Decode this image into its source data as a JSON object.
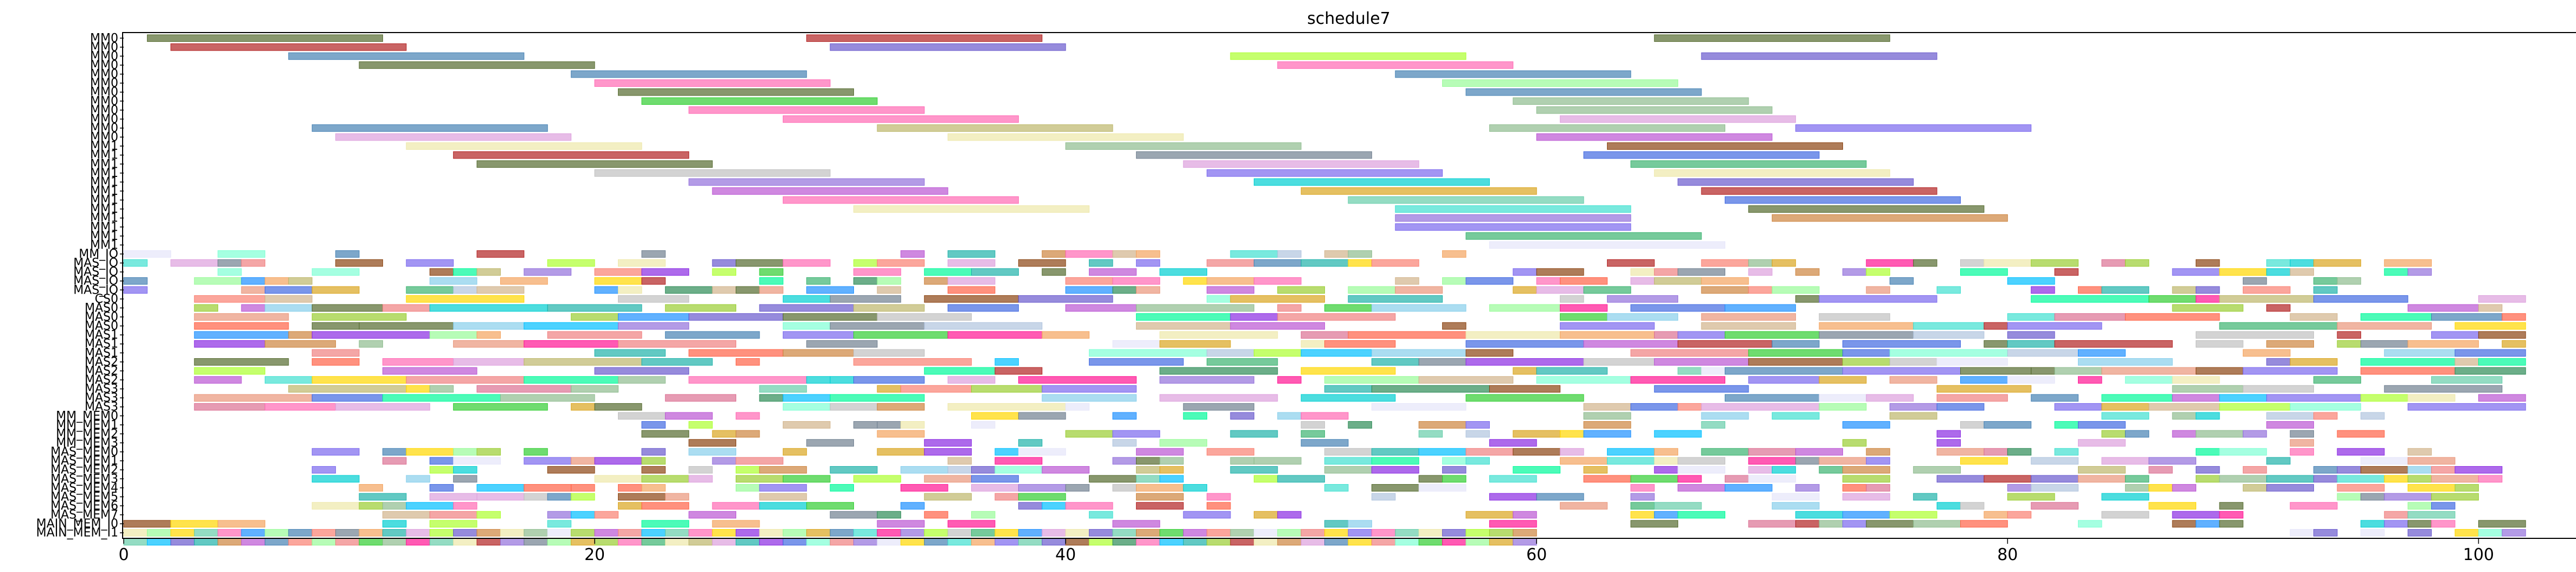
{
  "chart_data": {
    "type": "gantt",
    "title": "schedule7",
    "xlabel": "",
    "ylabel": "",
    "xlim": [
      0,
      104
    ],
    "xticks": [
      0,
      20,
      40,
      60,
      80,
      100
    ],
    "grid": false,
    "legend": "none",
    "rows": [
      "MM0",
      "MM0",
      "MM0",
      "MM0",
      "MM0",
      "MM0",
      "MM0",
      "MM0",
      "MM0",
      "MM0",
      "MM0",
      "MM0",
      "MM1",
      "MM1",
      "MM1",
      "MM1",
      "MM1",
      "MM1",
      "MM1",
      "MM1",
      "MM1",
      "MM1",
      "MM1",
      "MM1",
      "MM_IO",
      "MAS_IO",
      "MAS_IO",
      "MAS_IO",
      "MAS_IO",
      "CS0",
      "MAS0",
      "MAS0",
      "MAS0",
      "MAS1",
      "MAS1",
      "MAS1",
      "MAS2",
      "MAS2",
      "MAS2",
      "MAS3",
      "MAS3",
      "MAS3",
      "MM_MEM0",
      "MM_MEM1",
      "MM_MEM2",
      "MM_MEM3",
      "MAS_MEM0",
      "MAS_MEM1",
      "MAS_MEM2",
      "MAS_MEM3",
      "MAS_MEM4",
      "MAS_MEM5",
      "MAS_MEM6",
      "MAS_MEM7",
      "MAIN_MEM_I0",
      "MAIN_MEM_I1"
    ],
    "palette": [
      "#556b2f",
      "#b22222",
      "#6a5acd",
      "#4682b4",
      "#8fbc8f",
      "#20b2aa",
      "#9370db",
      "#32cd32",
      "#ff69b4",
      "#daa520",
      "#87ceeb",
      "#dda0dd",
      "#f08080",
      "#3cb371",
      "#7b68ee",
      "#00ced1",
      "#bdb76b",
      "#cd853f",
      "#4169e1",
      "#2e8b57",
      "#ba55d3",
      "#98fb98",
      "#f4a460",
      "#c0c0c0",
      "#e6e6fa",
      "#ff1493",
      "#adff2f",
      "#00fa9a",
      "#ffd700",
      "#708090",
      "#8b4513",
      "#ff6347",
      "#1e90ff",
      "#9acd32",
      "#d2b48c",
      "#e9967a",
      "#66cdaa",
      "#b0c4de",
      "#fa8072",
      "#40e0d0",
      "#eee8aa",
      "#db7093",
      "#00bfff",
      "#8a2be2",
      "#7fffd4"
    ],
    "tasks": [
      {
        "row": 0,
        "start": 1,
        "end": 11,
        "c": 0
      },
      {
        "row": 0,
        "start": 29,
        "end": 39,
        "c": 1
      },
      {
        "row": 0,
        "start": 65,
        "end": 75,
        "c": 0
      },
      {
        "row": 1,
        "start": 2,
        "end": 12,
        "c": 1
      },
      {
        "row": 1,
        "start": 30,
        "end": 40,
        "c": 2
      },
      {
        "row": 2,
        "start": 7,
        "end": 17,
        "c": 3
      },
      {
        "row": 2,
        "start": 47,
        "end": 57,
        "c": 26
      },
      {
        "row": 2,
        "start": 67,
        "end": 77,
        "c": 2
      },
      {
        "row": 3,
        "start": 10,
        "end": 20,
        "c": 0
      },
      {
        "row": 3,
        "start": 49,
        "end": 59,
        "c": 8
      },
      {
        "row": 4,
        "start": 19,
        "end": 29,
        "c": 3
      },
      {
        "row": 4,
        "start": 54,
        "end": 64,
        "c": 3
      },
      {
        "row": 5,
        "start": 20,
        "end": 30,
        "c": 8
      },
      {
        "row": 5,
        "start": 56,
        "end": 66,
        "c": 21
      },
      {
        "row": 6,
        "start": 21,
        "end": 31,
        "c": 0
      },
      {
        "row": 6,
        "start": 57,
        "end": 67,
        "c": 3
      },
      {
        "row": 7,
        "start": 22,
        "end": 32,
        "c": 7
      },
      {
        "row": 7,
        "start": 59,
        "end": 69,
        "c": 4
      },
      {
        "row": 8,
        "start": 24,
        "end": 34,
        "c": 8
      },
      {
        "row": 8,
        "start": 60,
        "end": 70,
        "c": 4
      },
      {
        "row": 9,
        "start": 28,
        "end": 38,
        "c": 8
      },
      {
        "row": 9,
        "start": 61,
        "end": 71,
        "c": 11
      },
      {
        "row": 10,
        "start": 8,
        "end": 18,
        "c": 3
      },
      {
        "row": 10,
        "start": 32,
        "end": 42,
        "c": 16
      },
      {
        "row": 10,
        "start": 58,
        "end": 68,
        "c": 4
      },
      {
        "row": 10,
        "start": 71,
        "end": 81,
        "c": 14
      },
      {
        "row": 11,
        "start": 9,
        "end": 19,
        "c": 11
      },
      {
        "row": 11,
        "start": 35,
        "end": 45,
        "c": 40
      },
      {
        "row": 11,
        "start": 60,
        "end": 70,
        "c": 20
      },
      {
        "row": 12,
        "start": 12,
        "end": 22,
        "c": 40
      },
      {
        "row": 12,
        "start": 40,
        "end": 50,
        "c": 4
      },
      {
        "row": 12,
        "start": 63,
        "end": 73,
        "c": 30
      },
      {
        "row": 13,
        "start": 14,
        "end": 24,
        "c": 1
      },
      {
        "row": 13,
        "start": 43,
        "end": 53,
        "c": 29
      },
      {
        "row": 13,
        "start": 62,
        "end": 72,
        "c": 18
      },
      {
        "row": 14,
        "start": 15,
        "end": 25,
        "c": 0
      },
      {
        "row": 14,
        "start": 45,
        "end": 55,
        "c": 11
      },
      {
        "row": 14,
        "start": 64,
        "end": 74,
        "c": 13
      },
      {
        "row": 15,
        "start": 20,
        "end": 30,
        "c": 23
      },
      {
        "row": 15,
        "start": 46,
        "end": 56,
        "c": 14
      },
      {
        "row": 15,
        "start": 65,
        "end": 75,
        "c": 40
      },
      {
        "row": 16,
        "start": 24,
        "end": 34,
        "c": 6
      },
      {
        "row": 16,
        "start": 48,
        "end": 58,
        "c": 15
      },
      {
        "row": 16,
        "start": 66,
        "end": 76,
        "c": 2
      },
      {
        "row": 17,
        "start": 25,
        "end": 35,
        "c": 20
      },
      {
        "row": 17,
        "start": 50,
        "end": 60,
        "c": 9
      },
      {
        "row": 17,
        "start": 67,
        "end": 77,
        "c": 1
      },
      {
        "row": 18,
        "start": 28,
        "end": 38,
        "c": 8
      },
      {
        "row": 18,
        "start": 52,
        "end": 62,
        "c": 36
      },
      {
        "row": 18,
        "start": 68,
        "end": 78,
        "c": 18
      },
      {
        "row": 19,
        "start": 31,
        "end": 41,
        "c": 40
      },
      {
        "row": 19,
        "start": 54,
        "end": 64,
        "c": 39
      },
      {
        "row": 19,
        "start": 69,
        "end": 79,
        "c": 0
      },
      {
        "row": 20,
        "start": 54,
        "end": 64,
        "c": 6
      },
      {
        "row": 20,
        "start": 70,
        "end": 80,
        "c": 17
      },
      {
        "row": 21,
        "start": 54,
        "end": 64,
        "c": 14
      },
      {
        "row": 22,
        "start": 57,
        "end": 67,
        "c": 13
      },
      {
        "row": 23,
        "start": 58,
        "end": 68,
        "c": 24
      },
      {
        "row": 56,
        "start": 0,
        "end": 1,
        "c": 36
      },
      {
        "row": 56,
        "start": 1,
        "end": 2,
        "c": 42
      },
      {
        "row": 56,
        "start": 2,
        "end": 3,
        "c": 2
      },
      {
        "row": 56,
        "start": 3,
        "end": 4,
        "c": 5
      },
      {
        "row": 56,
        "start": 4,
        "end": 5,
        "c": 17
      },
      {
        "row": 56,
        "start": 5,
        "end": 6,
        "c": 20
      },
      {
        "row": 56,
        "start": 6,
        "end": 7,
        "c": 3
      },
      {
        "row": 56,
        "start": 7,
        "end": 8,
        "c": 38
      },
      {
        "row": 56,
        "start": 8,
        "end": 9,
        "c": 21
      },
      {
        "row": 56,
        "start": 9,
        "end": 10,
        "c": 12
      },
      {
        "row": 56,
        "start": 10,
        "end": 11,
        "c": 7
      },
      {
        "row": 56,
        "start": 11,
        "end": 12,
        "c": 4
      },
      {
        "row": 56,
        "start": 12,
        "end": 13,
        "c": 25
      },
      {
        "row": 56,
        "start": 13,
        "end": 14,
        "c": 36
      },
      {
        "row": 56,
        "start": 14,
        "end": 15,
        "c": 40
      },
      {
        "row": 56,
        "start": 15,
        "end": 16,
        "c": 1
      },
      {
        "row": 56,
        "start": 16,
        "end": 17,
        "c": 6
      },
      {
        "row": 56,
        "start": 17,
        "end": 18,
        "c": 29
      },
      {
        "row": 56,
        "start": 18,
        "end": 19,
        "c": 21
      },
      {
        "row": 56,
        "start": 19,
        "end": 20,
        "c": 9
      },
      {
        "row": 56,
        "start": 20,
        "end": 21,
        "c": 33
      },
      {
        "row": 56,
        "start": 21,
        "end": 22,
        "c": 8
      },
      {
        "row": 56,
        "start": 22,
        "end": 23,
        "c": 13
      },
      {
        "row": 56,
        "start": 23,
        "end": 24,
        "c": 40
      },
      {
        "row": 56,
        "start": 24,
        "end": 25,
        "c": 16
      },
      {
        "row": 56,
        "start": 25,
        "end": 26,
        "c": 11
      },
      {
        "row": 56,
        "start": 26,
        "end": 27,
        "c": 5
      },
      {
        "row": 56,
        "start": 27,
        "end": 28,
        "c": 43
      },
      {
        "row": 56,
        "start": 28,
        "end": 29,
        "c": 18
      },
      {
        "row": 56,
        "start": 29,
        "end": 30,
        "c": 44
      },
      {
        "row": 56,
        "start": 30,
        "end": 31,
        "c": 12
      },
      {
        "row": 56,
        "start": 31,
        "end": 32,
        "c": 6
      },
      {
        "row": 56,
        "start": 32,
        "end": 33,
        "c": 24
      },
      {
        "row": 56,
        "start": 33,
        "end": 34,
        "c": 28
      },
      {
        "row": 56,
        "start": 34,
        "end": 35,
        "c": 3
      },
      {
        "row": 56,
        "start": 35,
        "end": 36,
        "c": 39
      },
      {
        "row": 56,
        "start": 36,
        "end": 37,
        "c": 22
      },
      {
        "row": 56,
        "start": 37,
        "end": 38,
        "c": 14
      },
      {
        "row": 56,
        "start": 38,
        "end": 39,
        "c": 36
      },
      {
        "row": 56,
        "start": 39,
        "end": 40,
        "c": 2
      },
      {
        "row": 56,
        "start": 40,
        "end": 41,
        "c": 30
      },
      {
        "row": 56,
        "start": 41,
        "end": 42,
        "c": 26
      },
      {
        "row": 56,
        "start": 42,
        "end": 43,
        "c": 19
      },
      {
        "row": 56,
        "start": 43,
        "end": 44,
        "c": 8
      },
      {
        "row": 56,
        "start": 44,
        "end": 45,
        "c": 42
      },
      {
        "row": 56,
        "start": 45,
        "end": 46,
        "c": 5
      },
      {
        "row": 56,
        "start": 46,
        "end": 47,
        "c": 33
      },
      {
        "row": 56,
        "start": 47,
        "end": 48,
        "c": 1
      },
      {
        "row": 56,
        "start": 48,
        "end": 49,
        "c": 40
      },
      {
        "row": 56,
        "start": 49,
        "end": 50,
        "c": 17
      },
      {
        "row": 56,
        "start": 50,
        "end": 51,
        "c": 11
      },
      {
        "row": 56,
        "start": 51,
        "end": 52,
        "c": 3
      },
      {
        "row": 56,
        "start": 52,
        "end": 53,
        "c": 28
      },
      {
        "row": 56,
        "start": 53,
        "end": 54,
        "c": 12
      },
      {
        "row": 56,
        "start": 54,
        "end": 55,
        "c": 44
      },
      {
        "row": 56,
        "start": 55,
        "end": 56,
        "c": 7
      },
      {
        "row": 56,
        "start": 56,
        "end": 57,
        "c": 25
      },
      {
        "row": 56,
        "start": 57,
        "end": 58,
        "c": 21
      },
      {
        "row": 56,
        "start": 58,
        "end": 59,
        "c": 9
      },
      {
        "row": 56,
        "start": 59,
        "end": 60,
        "c": 6
      },
      {
        "row": 55,
        "start": 0,
        "end": 1,
        "c": 40
      },
      {
        "row": 55,
        "start": 1,
        "end": 2,
        "c": 21
      },
      {
        "row": 55,
        "start": 2,
        "end": 3,
        "c": 28
      },
      {
        "row": 55,
        "start": 3,
        "end": 4,
        "c": 36
      },
      {
        "row": 55,
        "start": 4,
        "end": 5,
        "c": 8
      },
      {
        "row": 55,
        "start": 5,
        "end": 6,
        "c": 32
      },
      {
        "row": 55,
        "start": 6,
        "end": 7,
        "c": 21
      },
      {
        "row": 55,
        "start": 7,
        "end": 8,
        "c": 3
      },
      {
        "row": 55,
        "start": 8,
        "end": 9,
        "c": 38
      },
      {
        "row": 55,
        "start": 9,
        "end": 10,
        "c": 29
      },
      {
        "row": 55,
        "start": 10,
        "end": 11,
        "c": 22
      },
      {
        "row": 55,
        "start": 11,
        "end": 12,
        "c": 5
      },
      {
        "row": 55,
        "start": 12,
        "end": 13,
        "c": 11
      },
      {
        "row": 55,
        "start": 13,
        "end": 14,
        "c": 26
      },
      {
        "row": 55,
        "start": 14,
        "end": 15,
        "c": 2
      },
      {
        "row": 55,
        "start": 15,
        "end": 16,
        "c": 17
      },
      {
        "row": 55,
        "start": 16,
        "end": 17,
        "c": 40
      },
      {
        "row": 55,
        "start": 17,
        "end": 18,
        "c": 4
      },
      {
        "row": 55,
        "start": 18,
        "end": 19,
        "c": 24
      },
      {
        "row": 55,
        "start": 19,
        "end": 20,
        "c": 33
      },
      {
        "row": 55,
        "start": 20,
        "end": 21,
        "c": 20
      },
      {
        "row": 55,
        "start": 21,
        "end": 22,
        "c": 12
      },
      {
        "row": 55,
        "start": 22,
        "end": 23,
        "c": 42
      },
      {
        "row": 55,
        "start": 23,
        "end": 24,
        "c": 36
      },
      {
        "row": 55,
        "start": 24,
        "end": 25,
        "c": 8
      },
      {
        "row": 55,
        "start": 25,
        "end": 26,
        "c": 28
      },
      {
        "row": 55,
        "start": 26,
        "end": 27,
        "c": 43
      },
      {
        "row": 55,
        "start": 27,
        "end": 28,
        "c": 40
      },
      {
        "row": 55,
        "start": 28,
        "end": 29,
        "c": 21
      },
      {
        "row": 55,
        "start": 29,
        "end": 30,
        "c": 9
      },
      {
        "row": 55,
        "start": 30,
        "end": 31,
        "c": 3
      },
      {
        "row": 55,
        "start": 31,
        "end": 32,
        "c": 39
      },
      {
        "row": 55,
        "start": 32,
        "end": 33,
        "c": 25
      },
      {
        "row": 55,
        "start": 33,
        "end": 34,
        "c": 6
      },
      {
        "row": 55,
        "start": 34,
        "end": 35,
        "c": 26
      },
      {
        "row": 55,
        "start": 35,
        "end": 36,
        "c": 23
      },
      {
        "row": 55,
        "start": 36,
        "end": 37,
        "c": 13
      },
      {
        "row": 55,
        "start": 37,
        "end": 38,
        "c": 28
      },
      {
        "row": 55,
        "start": 38,
        "end": 39,
        "c": 32
      },
      {
        "row": 55,
        "start": 39,
        "end": 40,
        "c": 11
      },
      {
        "row": 55,
        "start": 40,
        "end": 41,
        "c": 40
      },
      {
        "row": 55,
        "start": 41,
        "end": 42,
        "c": 2
      },
      {
        "row": 55,
        "start": 42,
        "end": 43,
        "c": 36
      },
      {
        "row": 55,
        "start": 43,
        "end": 44,
        "c": 17
      },
      {
        "row": 55,
        "start": 44,
        "end": 45,
        "c": 7
      },
      {
        "row": 55,
        "start": 45,
        "end": 46,
        "c": 20
      },
      {
        "row": 55,
        "start": 46,
        "end": 47,
        "c": 38
      },
      {
        "row": 55,
        "start": 47,
        "end": 48,
        "c": 4
      },
      {
        "row": 55,
        "start": 48,
        "end": 49,
        "c": 24
      },
      {
        "row": 55,
        "start": 49,
        "end": 50,
        "c": 21
      },
      {
        "row": 55,
        "start": 50,
        "end": 51,
        "c": 12
      },
      {
        "row": 55,
        "start": 51,
        "end": 52,
        "c": 28
      },
      {
        "row": 55,
        "start": 52,
        "end": 53,
        "c": 14
      },
      {
        "row": 55,
        "start": 53,
        "end": 54,
        "c": 8
      },
      {
        "row": 55,
        "start": 54,
        "end": 55,
        "c": 36
      },
      {
        "row": 55,
        "start": 55,
        "end": 56,
        "c": 40
      },
      {
        "row": 55,
        "start": 56,
        "end": 57,
        "c": 2
      },
      {
        "row": 55,
        "start": 57,
        "end": 58,
        "c": 26
      },
      {
        "row": 55,
        "start": 58,
        "end": 59,
        "c": 33
      },
      {
        "row": 55,
        "start": 59,
        "end": 60,
        "c": 17
      },
      {
        "row": 55,
        "start": 92,
        "end": 93,
        "c": 24
      },
      {
        "row": 55,
        "start": 93,
        "end": 94,
        "c": 2
      },
      {
        "row": 55,
        "start": 95,
        "end": 96,
        "c": 24
      },
      {
        "row": 55,
        "start": 97,
        "end": 98,
        "c": 2
      },
      {
        "row": 55,
        "start": 99,
        "end": 100,
        "c": 28
      },
      {
        "row": 55,
        "start": 100,
        "end": 101,
        "c": 44
      },
      {
        "row": 55,
        "start": 101,
        "end": 102,
        "c": 6
      }
    ],
    "fill": {
      "description_only_for_script": "",
      "rows_from": 24,
      "rows_to": 54,
      "x_from": 0,
      "x_to": 102
    }
  }
}
